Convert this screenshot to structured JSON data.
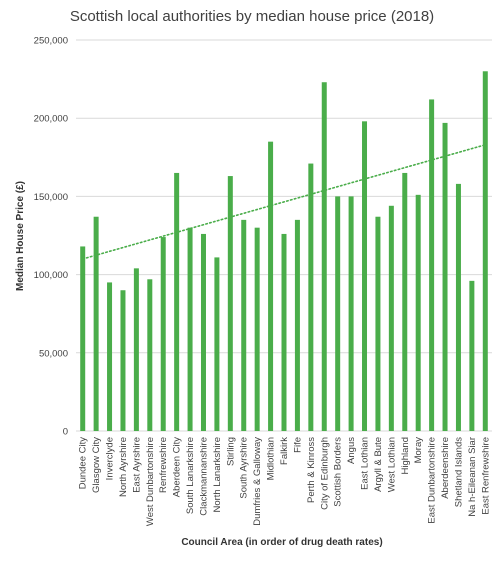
{
  "chart_data": {
    "type": "bar",
    "title": "Scottish local authorities by median house price (2018)",
    "xlabel": "Council Area (in order of drug death rates)",
    "ylabel": "Median House Price (£)",
    "ylim": [
      0,
      250000
    ],
    "yticks": [
      0,
      50000,
      100000,
      150000,
      200000,
      250000
    ],
    "ytick_labels": [
      "0",
      "50,000",
      "100,000",
      "150,000",
      "200,000",
      "250,000"
    ],
    "grid": true,
    "bar_color": "#4aad4a",
    "trendline": {
      "type": "linear",
      "style": "dotted",
      "color": "#4aad4a",
      "start": 110000,
      "end": 183000
    },
    "categories": [
      "Dundee City",
      "Glasgow City",
      "Inverclyde",
      "North Ayrshire",
      "East Ayrshire",
      "West Dunbartonshire",
      "Renfrewshire",
      "Aberdeen City",
      "South Lanarkshire",
      "Clackmannanshire",
      "North Lanarkshire",
      "Stirling",
      "South Ayrshire",
      "Dumfries & Galloway",
      "Midlothian",
      "Falkirk",
      "Fife",
      "Perth & Kinross",
      "City of Edinburgh",
      "Scottish Borders",
      "Angus",
      "East Lothian",
      "Argyll & Bute",
      "West Lothian",
      "Highland",
      "Moray",
      "East Dunbartonshire",
      "Aberdeenshire",
      "Shetland Islands",
      "Na h-Eileanan Siar",
      "East Renfrewshire"
    ],
    "values": [
      118000,
      137000,
      95000,
      90000,
      104000,
      97000,
      124000,
      165000,
      130000,
      126000,
      111000,
      163000,
      135000,
      130000,
      185000,
      126000,
      135000,
      171000,
      223000,
      150000,
      150000,
      198000,
      137000,
      144000,
      165000,
      151000,
      212000,
      197000,
      158000,
      96000,
      230000
    ]
  }
}
